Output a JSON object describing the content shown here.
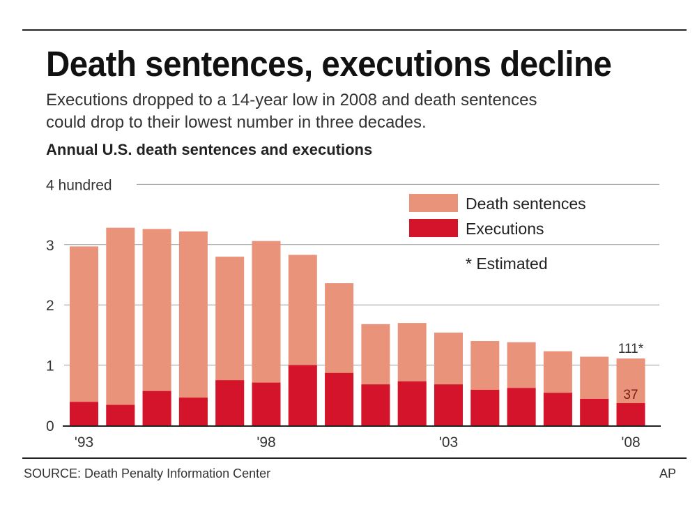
{
  "title": "Death sentences, executions decline",
  "subtitle_lines": [
    "Executions dropped to a 14-year low in 2008 and death sentences",
    "could drop to their lowest number in three decades."
  ],
  "source": "SOURCE: Death Penalty Information Center",
  "credit": "AP",
  "colors": {
    "death_sentences": "#e8937a",
    "executions": "#d3142b",
    "grid": "#999999"
  },
  "chart_data": {
    "type": "bar",
    "stacking": "overlaid",
    "title": "Annual U.S. death sentences and executions",
    "ylabel": "hundred",
    "ylim": [
      0,
      400
    ],
    "yticks": [
      {
        "value": 0,
        "label": "0"
      },
      {
        "value": 100,
        "label": "1"
      },
      {
        "value": 200,
        "label": "2"
      },
      {
        "value": 300,
        "label": "3"
      },
      {
        "value": 400,
        "label": "4 hundred"
      }
    ],
    "categories": [
      "1993",
      "1994",
      "1995",
      "1996",
      "1997",
      "1998",
      "1999",
      "2000",
      "2001",
      "2002",
      "2003",
      "2004",
      "2005",
      "2006",
      "2007",
      "2008"
    ],
    "xtick_labels": [
      {
        "index": 0,
        "label": "'93"
      },
      {
        "index": 5,
        "label": "'98"
      },
      {
        "index": 10,
        "label": "'03"
      },
      {
        "index": 15,
        "label": "'08"
      }
    ],
    "series": [
      {
        "name": "Death sentences",
        "values": [
          297,
          328,
          326,
          322,
          280,
          306,
          283,
          236,
          168,
          170,
          154,
          140,
          138,
          123,
          114,
          111
        ]
      },
      {
        "name": "Executions",
        "values": [
          39,
          34,
          57,
          46,
          75,
          71,
          100,
          87,
          68,
          73,
          68,
          59,
          62,
          54,
          44,
          37
        ]
      }
    ],
    "legend": [
      "Death sentences",
      "Executions"
    ],
    "legend_position": "top-right",
    "note": "* Estimated",
    "data_labels": {
      "death_last": "111*",
      "executions_last": "37"
    },
    "grid": true
  }
}
